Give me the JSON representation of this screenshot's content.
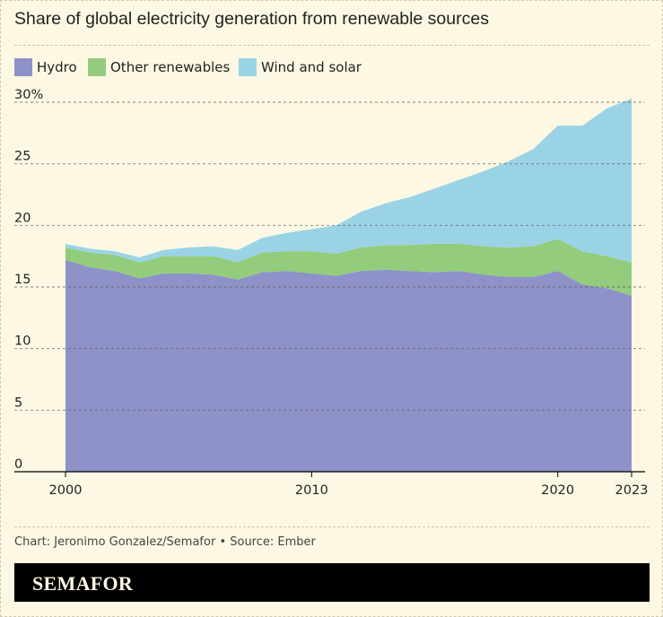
{
  "title": "Share of global electricity generation from renewable sources",
  "credit": "Chart: Jeronimo Gonzalez/Semafor • Source: Ember",
  "brand": "SEMAFOR",
  "colors": {
    "background": "#fdf8e3",
    "hydro": "#8e92c9",
    "other": "#92cc7c",
    "wind_solar": "#9ad3e6"
  },
  "chart_data": {
    "type": "area",
    "stacked": true,
    "title": "Share of global electricity generation from renewable sources",
    "xlabel": "",
    "ylabel": "",
    "x": [
      2000,
      2001,
      2002,
      2003,
      2004,
      2005,
      2006,
      2007,
      2008,
      2009,
      2010,
      2011,
      2012,
      2013,
      2014,
      2015,
      2016,
      2017,
      2018,
      2019,
      2020,
      2021,
      2022,
      2023
    ],
    "series": [
      {
        "name": "Hydro",
        "values": [
          17.2,
          16.6,
          16.3,
          15.7,
          16.1,
          16.1,
          16.0,
          15.6,
          16.2,
          16.3,
          16.1,
          15.9,
          16.3,
          16.4,
          16.3,
          16.2,
          16.3,
          16.0,
          15.8,
          15.8,
          16.3,
          15.2,
          14.9,
          14.3
        ]
      },
      {
        "name": "Other renewables",
        "values": [
          1.0,
          1.2,
          1.3,
          1.3,
          1.4,
          1.4,
          1.5,
          1.4,
          1.6,
          1.6,
          1.8,
          1.8,
          1.9,
          2.0,
          2.1,
          2.3,
          2.2,
          2.3,
          2.4,
          2.5,
          2.6,
          2.7,
          2.6,
          2.7
        ]
      },
      {
        "name": "Wind and solar",
        "values": [
          0.3,
          0.3,
          0.3,
          0.4,
          0.5,
          0.7,
          0.8,
          1.0,
          1.2,
          1.5,
          1.8,
          2.3,
          2.9,
          3.4,
          3.9,
          4.5,
          5.2,
          6.1,
          7.0,
          7.9,
          9.2,
          10.2,
          12.0,
          13.3
        ]
      }
    ],
    "ylim": [
      0,
      30
    ],
    "yticks": [
      0,
      5,
      10,
      15,
      20,
      25,
      30
    ],
    "ytick_labels": [
      "0",
      "5",
      "10",
      "15",
      "20",
      "25",
      "30%"
    ],
    "xticks": [
      2000,
      2010,
      2020,
      2023
    ],
    "xtick_labels": [
      "2000",
      "2010",
      "2020",
      "2023"
    ],
    "xlim": [
      2000,
      2023
    ],
    "grid": "horizontal dashed",
    "legend_position": "top-left"
  }
}
